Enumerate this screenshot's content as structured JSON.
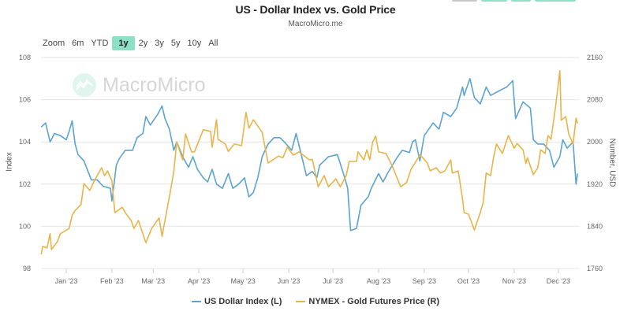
{
  "header": {
    "title": "US - Dollar Index vs. Gold Price",
    "subtitle": "MacroMicro.me"
  },
  "range_selector": {
    "label": "Zoom",
    "options": [
      "6m",
      "YTD",
      "1y",
      "2y",
      "3y",
      "5y",
      "10y",
      "All"
    ],
    "selected": "1y"
  },
  "watermark": "MacroMicro",
  "colors": {
    "dxy": "#5ba3d0",
    "gold": "#e8b44a",
    "grid": "#e6e6e6",
    "active_range": "#8de0c5"
  },
  "chart_data": {
    "type": "line",
    "title": "US - Dollar Index vs. Gold Price",
    "grid": true,
    "legend_placement": "bottom",
    "x_tick_labels": [
      "Jan '23",
      "Feb '23",
      "Mar '23",
      "Apr '23",
      "May '23",
      "Jun '23",
      "Jul '23",
      "Aug '23",
      "Sep '23",
      "Oct '23",
      "Nov '23",
      "Dec '23"
    ],
    "x_ticks": [
      "2023-01-01",
      "2023-02-01",
      "2023-03-01",
      "2023-04-01",
      "2023-05-01",
      "2023-06-01",
      "2023-07-01",
      "2023-08-01",
      "2023-09-01",
      "2023-10-01",
      "2023-11-01",
      "2023-12-01"
    ],
    "xlim": [
      "2022-12-15",
      "2023-12-14"
    ],
    "y_left": {
      "label": "Index",
      "lim": [
        98,
        108
      ],
      "ticks": [
        "98",
        "100",
        "102",
        "104",
        "106",
        "108"
      ]
    },
    "y_right": {
      "label": "Number, USD",
      "lim": [
        1760,
        2160
      ],
      "ticks": [
        "1760",
        "1840",
        "1920",
        "2000",
        "2080",
        "2160"
      ]
    },
    "series": [
      {
        "name": "US Dollar Index (L)",
        "axis": "left",
        "points": [
          [
            "2022-12-15",
            104.7
          ],
          [
            "2022-12-18",
            104.9
          ],
          [
            "2022-12-21",
            104.0
          ],
          [
            "2022-12-24",
            104.4
          ],
          [
            "2022-12-28",
            104.3
          ],
          [
            "2023-01-01",
            104.1
          ],
          [
            "2023-01-03",
            104.5
          ],
          [
            "2023-01-05",
            105.0
          ],
          [
            "2023-01-07",
            103.9
          ],
          [
            "2023-01-09",
            103.4
          ],
          [
            "2023-01-13",
            103.1
          ],
          [
            "2023-01-18",
            102.2
          ],
          [
            "2023-01-22",
            102.2
          ],
          [
            "2023-01-26",
            101.9
          ],
          [
            "2023-01-31",
            101.8
          ],
          [
            "2023-02-01",
            101.2
          ],
          [
            "2023-02-04",
            102.9
          ],
          [
            "2023-02-06",
            103.2
          ],
          [
            "2023-02-10",
            103.6
          ],
          [
            "2023-02-15",
            103.6
          ],
          [
            "2023-02-18",
            104.2
          ],
          [
            "2023-02-22",
            104.4
          ],
          [
            "2023-02-24",
            105.2
          ],
          [
            "2023-02-27",
            104.8
          ],
          [
            "2023-03-04",
            105.3
          ],
          [
            "2023-03-07",
            105.7
          ],
          [
            "2023-03-09",
            105.1
          ],
          [
            "2023-03-12",
            104.6
          ],
          [
            "2023-03-15",
            103.6
          ],
          [
            "2023-03-17",
            104.0
          ],
          [
            "2023-03-21",
            103.3
          ],
          [
            "2023-03-25",
            102.8
          ],
          [
            "2023-03-28",
            103.3
          ],
          [
            "2023-03-31",
            102.7
          ],
          [
            "2023-04-04",
            102.3
          ],
          [
            "2023-04-07",
            102.1
          ],
          [
            "2023-04-10",
            102.7
          ],
          [
            "2023-04-13",
            102.0
          ],
          [
            "2023-04-17",
            101.8
          ],
          [
            "2023-04-21",
            102.5
          ],
          [
            "2023-04-24",
            101.8
          ],
          [
            "2023-04-28",
            102.0
          ],
          [
            "2023-05-02",
            102.3
          ],
          [
            "2023-05-05",
            101.4
          ],
          [
            "2023-05-08",
            101.6
          ],
          [
            "2023-05-11",
            102.3
          ],
          [
            "2023-05-14",
            103.3
          ],
          [
            "2023-05-18",
            103.9
          ],
          [
            "2023-05-22",
            104.2
          ],
          [
            "2023-05-26",
            104.2
          ],
          [
            "2023-05-29",
            104.0
          ],
          [
            "2023-06-03",
            103.6
          ],
          [
            "2023-06-06",
            104.4
          ],
          [
            "2023-06-13",
            102.4
          ],
          [
            "2023-06-17",
            102.6
          ],
          [
            "2023-06-20",
            102.3
          ],
          [
            "2023-06-22",
            102.9
          ],
          [
            "2023-06-28",
            103.3
          ],
          [
            "2023-07-04",
            103.4
          ],
          [
            "2023-07-09",
            102.3
          ],
          [
            "2023-07-11",
            101.8
          ],
          [
            "2023-07-13",
            99.8
          ],
          [
            "2023-07-17",
            99.9
          ],
          [
            "2023-07-20",
            101.0
          ],
          [
            "2023-07-25",
            101.4
          ],
          [
            "2023-07-27",
            101.8
          ],
          [
            "2023-08-01",
            102.5
          ],
          [
            "2023-08-04",
            102.1
          ],
          [
            "2023-08-07",
            102.5
          ],
          [
            "2023-08-13",
            103.2
          ],
          [
            "2023-08-17",
            103.6
          ],
          [
            "2023-08-22",
            103.5
          ],
          [
            "2023-08-24",
            104.0
          ],
          [
            "2023-08-26",
            104.1
          ],
          [
            "2023-08-29",
            103.1
          ],
          [
            "2023-09-01",
            104.3
          ],
          [
            "2023-09-07",
            104.9
          ],
          [
            "2023-09-11",
            104.6
          ],
          [
            "2023-09-14",
            105.4
          ],
          [
            "2023-09-19",
            105.2
          ],
          [
            "2023-09-23",
            105.6
          ],
          [
            "2023-09-27",
            106.6
          ],
          [
            "2023-09-28",
            106.2
          ],
          [
            "2023-10-02",
            107.0
          ],
          [
            "2023-10-05",
            106.1
          ],
          [
            "2023-10-09",
            105.8
          ],
          [
            "2023-10-13",
            106.6
          ],
          [
            "2023-10-16",
            106.2
          ],
          [
            "2023-10-24",
            106.5
          ],
          [
            "2023-10-27",
            106.6
          ],
          [
            "2023-10-31",
            106.9
          ],
          [
            "2023-11-02",
            105.1
          ],
          [
            "2023-11-07",
            105.9
          ],
          [
            "2023-11-12",
            105.6
          ],
          [
            "2023-11-14",
            104.1
          ],
          [
            "2023-11-17",
            103.9
          ],
          [
            "2023-11-21",
            103.9
          ],
          [
            "2023-11-25",
            103.6
          ],
          [
            "2023-11-28",
            102.8
          ],
          [
            "2023-12-02",
            103.3
          ],
          [
            "2023-12-04",
            104.1
          ],
          [
            "2023-12-07",
            103.7
          ],
          [
            "2023-12-11",
            104.0
          ],
          [
            "2023-12-13",
            102.0
          ],
          [
            "2023-12-14",
            102.5
          ]
        ]
      },
      {
        "name": "NYMEX - Gold Futures Price (R)",
        "axis": "right",
        "points": [
          [
            "2022-12-15",
            1787
          ],
          [
            "2022-12-16",
            1802
          ],
          [
            "2022-12-19",
            1799
          ],
          [
            "2022-12-21",
            1826
          ],
          [
            "2022-12-22",
            1796
          ],
          [
            "2022-12-26",
            1811
          ],
          [
            "2022-12-28",
            1826
          ],
          [
            "2023-01-03",
            1836
          ],
          [
            "2023-01-05",
            1861
          ],
          [
            "2023-01-07",
            1870
          ],
          [
            "2023-01-11",
            1881
          ],
          [
            "2023-01-13",
            1921
          ],
          [
            "2023-01-17",
            1908
          ],
          [
            "2023-01-20",
            1926
          ],
          [
            "2023-01-25",
            1951
          ],
          [
            "2023-01-27",
            1936
          ],
          [
            "2023-01-29",
            1945
          ],
          [
            "2023-02-01",
            1926
          ],
          [
            "2023-02-03",
            1866
          ],
          [
            "2023-02-08",
            1876
          ],
          [
            "2023-02-10",
            1866
          ],
          [
            "2023-02-14",
            1851
          ],
          [
            "2023-02-16",
            1836
          ],
          [
            "2023-02-19",
            1851
          ],
          [
            "2023-02-24",
            1809
          ],
          [
            "2023-02-28",
            1836
          ],
          [
            "2023-03-05",
            1856
          ],
          [
            "2023-03-07",
            1821
          ],
          [
            "2023-03-10",
            1866
          ],
          [
            "2023-03-13",
            1911
          ],
          [
            "2023-03-15",
            1945
          ],
          [
            "2023-03-17",
            2000
          ],
          [
            "2023-03-21",
            1966
          ],
          [
            "2023-03-23",
            2015
          ],
          [
            "2023-03-27",
            1981
          ],
          [
            "2023-03-29",
            1981
          ],
          [
            "2023-04-04",
            2023
          ],
          [
            "2023-04-09",
            2020
          ],
          [
            "2023-04-10",
            1990
          ],
          [
            "2023-04-13",
            2042
          ],
          [
            "2023-04-14",
            2005
          ],
          [
            "2023-04-19",
            1996
          ],
          [
            "2023-04-21",
            1982
          ],
          [
            "2023-04-25",
            1996
          ],
          [
            "2023-04-30",
            1993
          ],
          [
            "2023-05-03",
            2056
          ],
          [
            "2023-05-05",
            2026
          ],
          [
            "2023-05-08",
            2042
          ],
          [
            "2023-05-14",
            2018
          ],
          [
            "2023-05-18",
            1960
          ],
          [
            "2023-05-25",
            1973
          ],
          [
            "2023-05-28",
            1970
          ],
          [
            "2023-05-31",
            1990
          ],
          [
            "2023-06-04",
            1975
          ],
          [
            "2023-06-08",
            1981
          ],
          [
            "2023-06-15",
            1966
          ],
          [
            "2023-06-17",
            1967
          ],
          [
            "2023-06-21",
            1915
          ],
          [
            "2023-06-25",
            1936
          ],
          [
            "2023-06-28",
            1915
          ],
          [
            "2023-07-03",
            1930
          ],
          [
            "2023-07-06",
            1915
          ],
          [
            "2023-07-10",
            1936
          ],
          [
            "2023-07-12",
            1963
          ],
          [
            "2023-07-17",
            1963
          ],
          [
            "2023-07-18",
            1981
          ],
          [
            "2023-07-22",
            1966
          ],
          [
            "2023-07-24",
            1985
          ],
          [
            "2023-07-26",
            1966
          ],
          [
            "2023-07-28",
            2000
          ],
          [
            "2023-07-30",
            2011
          ],
          [
            "2023-08-01",
            1981
          ],
          [
            "2023-08-06",
            1978
          ],
          [
            "2023-08-10",
            1956
          ],
          [
            "2023-08-16",
            1915
          ],
          [
            "2023-08-20",
            1923
          ],
          [
            "2023-08-23",
            1948
          ],
          [
            "2023-08-29",
            1975
          ],
          [
            "2023-08-31",
            1970
          ],
          [
            "2023-09-03",
            1960
          ],
          [
            "2023-09-05",
            1945
          ],
          [
            "2023-09-09",
            1951
          ],
          [
            "2023-09-12",
            1941
          ],
          [
            "2023-09-15",
            1945
          ],
          [
            "2023-09-19",
            1966
          ],
          [
            "2023-09-20",
            1941
          ],
          [
            "2023-09-24",
            1945
          ],
          [
            "2023-09-27",
            1891
          ],
          [
            "2023-09-28",
            1866
          ],
          [
            "2023-10-01",
            1863
          ],
          [
            "2023-10-05",
            1833
          ],
          [
            "2023-10-09",
            1866
          ],
          [
            "2023-10-11",
            1885
          ],
          [
            "2023-10-13",
            1941
          ],
          [
            "2023-10-16",
            1936
          ],
          [
            "2023-10-18",
            1970
          ],
          [
            "2023-10-20",
            1996
          ],
          [
            "2023-10-24",
            1978
          ],
          [
            "2023-10-28",
            2012
          ],
          [
            "2023-11-01",
            1988
          ],
          [
            "2023-11-03",
            1997
          ],
          [
            "2023-11-07",
            1985
          ],
          [
            "2023-11-09",
            1959
          ],
          [
            "2023-11-10",
            1970
          ],
          [
            "2023-11-14",
            1938
          ],
          [
            "2023-11-17",
            1951
          ],
          [
            "2023-11-19",
            1985
          ],
          [
            "2023-11-22",
            1978
          ],
          [
            "2023-11-24",
            2012
          ],
          [
            "2023-11-26",
            2005
          ],
          [
            "2023-11-29",
            2065
          ],
          [
            "2023-12-02",
            2135
          ],
          [
            "2023-12-03",
            2041
          ],
          [
            "2023-12-06",
            2048
          ],
          [
            "2023-12-08",
            2015
          ],
          [
            "2023-12-11",
            1996
          ],
          [
            "2023-12-13",
            2045
          ],
          [
            "2023-12-14",
            2035
          ]
        ]
      }
    ]
  }
}
